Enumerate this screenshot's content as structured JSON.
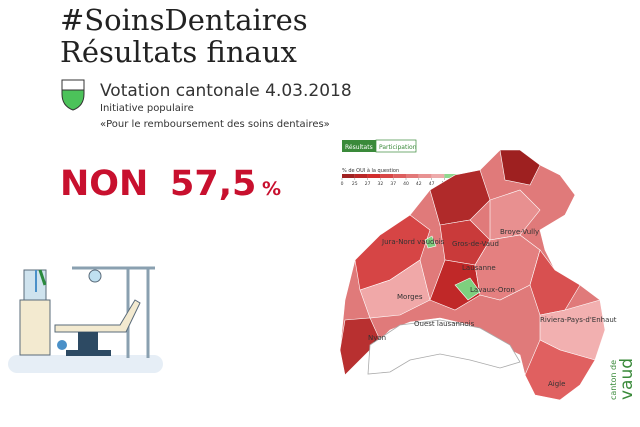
{
  "header": {
    "title": [
      "#SoinsDentaires",
      "Résultats finaux"
    ],
    "vote": "Votation cantonale 4.03.2018",
    "kind": "Initiative populaire",
    "question": "«Pour le remboursement des soins dentaires»"
  },
  "result": {
    "answer": "NON",
    "share": "57,5",
    "unit": "%"
  },
  "map": {
    "tabs": [
      "Résultats",
      "Participation"
    ],
    "legend_title": "% de OUI à la question",
    "legend_ticks": [
      0,
      25,
      27,
      32,
      37,
      40,
      42,
      47,
      50,
      75,
      85
    ],
    "districts": [
      "Jura-Nord vaudois",
      "Gros-de-Vaud",
      "Broye-Vully",
      "Morges",
      "Lausanne",
      "Ouest lausannois",
      "Lavaux-Oron",
      "Riviera-Pays-d'Enhaut",
      "Nyon",
      "Aigle"
    ]
  },
  "logo": [
    "canton de",
    "vaud"
  ]
}
